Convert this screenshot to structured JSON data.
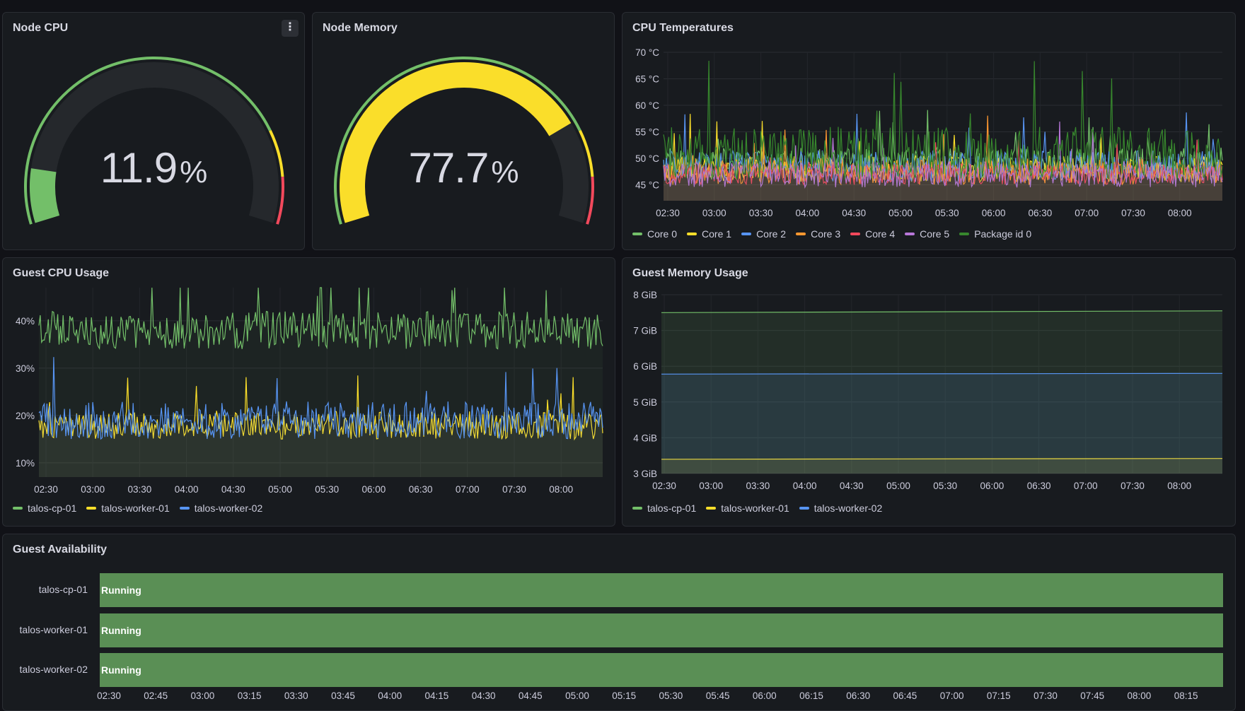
{
  "panels": {
    "node_cpu": {
      "title": "Node CPU",
      "value": "11.9",
      "unit": "%",
      "percent": 11.9,
      "menu_icon": "kebab-menu-icon",
      "menu_glyph": "⋮"
    },
    "node_memory": {
      "title": "Node Memory",
      "value": "77.7",
      "unit": "%",
      "percent": 77.7
    },
    "cpu_temps": {
      "title": "CPU Temperatures"
    },
    "guest_cpu": {
      "title": "Guest CPU Usage"
    },
    "guest_memory": {
      "title": "Guest Memory Usage"
    },
    "guest_availability": {
      "title": "Guest Availability"
    }
  },
  "colors": {
    "green": "#73bf69",
    "yellow": "#fade2a",
    "blue": "#5794f2",
    "orange": "#ff9830",
    "red": "#f2495c",
    "purple": "#b877d9",
    "dark_green": "#37872d",
    "running": "#5a8f55"
  },
  "chart_data": [
    {
      "id": "cpu_temps",
      "type": "line",
      "title": "CPU Temperatures",
      "ylabel": "",
      "yticks": [
        "45 °C",
        "50 °C",
        "55 °C",
        "60 °C",
        "65 °C",
        "70 °C"
      ],
      "ylim": [
        42,
        70
      ],
      "xticks": [
        "02:30",
        "03:00",
        "03:30",
        "04:00",
        "04:30",
        "05:00",
        "05:30",
        "06:00",
        "06:30",
        "07:00",
        "07:30",
        "08:00"
      ],
      "series": [
        {
          "name": "Core 0",
          "color": "#73bf69",
          "base": 49,
          "amp": 3
        },
        {
          "name": "Core 1",
          "color": "#fade2a",
          "base": 48,
          "amp": 2.5
        },
        {
          "name": "Core 2",
          "color": "#5794f2",
          "base": 48.5,
          "amp": 3
        },
        {
          "name": "Core 3",
          "color": "#ff9830",
          "base": 47.5,
          "amp": 2.5
        },
        {
          "name": "Core 4",
          "color": "#f2495c",
          "base": 47,
          "amp": 2
        },
        {
          "name": "Core 5",
          "color": "#b877d9",
          "base": 47,
          "amp": 2.5
        },
        {
          "name": "Package id 0",
          "color": "#37872d",
          "base": 51,
          "amp": 5
        }
      ]
    },
    {
      "id": "guest_cpu",
      "type": "line",
      "title": "Guest CPU Usage",
      "yticks": [
        "10%",
        "20%",
        "30%",
        "40%"
      ],
      "ylim": [
        7,
        47
      ],
      "xticks": [
        "02:30",
        "03:00",
        "03:30",
        "04:00",
        "04:30",
        "05:00",
        "05:30",
        "06:00",
        "06:30",
        "07:00",
        "07:30",
        "08:00"
      ],
      "series": [
        {
          "name": "talos-cp-01",
          "color": "#73bf69",
          "base": 38,
          "amp": 4
        },
        {
          "name": "talos-worker-01",
          "color": "#fade2a",
          "base": 18,
          "amp": 3
        },
        {
          "name": "talos-worker-02",
          "color": "#5794f2",
          "base": 19,
          "amp": 4
        }
      ]
    },
    {
      "id": "guest_memory",
      "type": "area",
      "title": "Guest Memory Usage",
      "yticks": [
        "3 GiB",
        "4 GiB",
        "5 GiB",
        "6 GiB",
        "7 GiB",
        "8 GiB"
      ],
      "ylim": [
        3,
        8
      ],
      "xticks": [
        "02:30",
        "03:00",
        "03:30",
        "04:00",
        "04:30",
        "05:00",
        "05:30",
        "06:00",
        "06:30",
        "07:00",
        "07:30",
        "08:00"
      ],
      "series": [
        {
          "name": "talos-cp-01",
          "color": "#73bf69",
          "values": [
            7.5,
            7.55
          ]
        },
        {
          "name": "talos-worker-01",
          "color": "#fade2a",
          "values": [
            3.4,
            3.42
          ]
        },
        {
          "name": "talos-worker-02",
          "color": "#5794f2",
          "values": [
            5.78,
            5.8
          ]
        }
      ]
    },
    {
      "id": "guest_availability",
      "type": "table",
      "title": "Guest Availability",
      "rows": [
        {
          "name": "talos-cp-01",
          "state": "Running"
        },
        {
          "name": "talos-worker-01",
          "state": "Running"
        },
        {
          "name": "talos-worker-02",
          "state": "Running"
        }
      ],
      "xticks": [
        "02:30",
        "02:45",
        "03:00",
        "03:15",
        "03:30",
        "03:45",
        "04:00",
        "04:15",
        "04:30",
        "04:45",
        "05:00",
        "05:15",
        "05:30",
        "05:45",
        "06:00",
        "06:15",
        "06:30",
        "06:45",
        "07:00",
        "07:15",
        "07:30",
        "07:45",
        "08:00",
        "08:15"
      ]
    }
  ]
}
